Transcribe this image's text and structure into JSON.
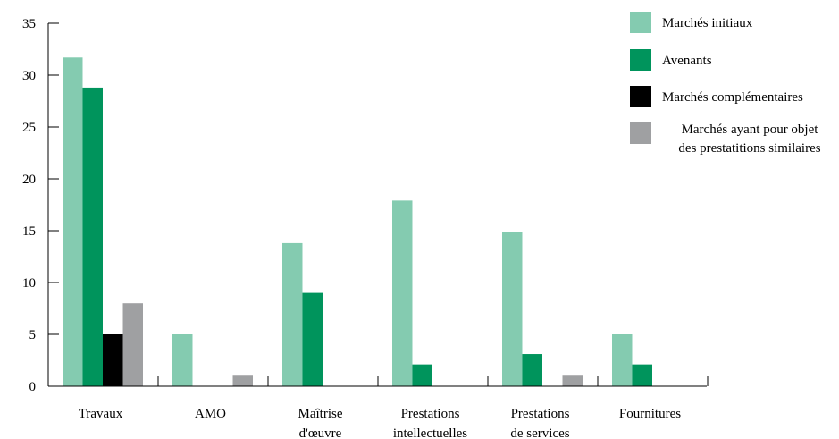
{
  "chart_data": {
    "type": "bar",
    "categories": [
      [
        "Travaux"
      ],
      [
        "AMO"
      ],
      [
        "Maîtrise",
        "d'œuvre"
      ],
      [
        "Prestations",
        "intellectuelles"
      ],
      [
        "Prestations",
        "de services"
      ],
      [
        "Fournitures"
      ]
    ],
    "series": [
      {
        "name": "Marchés initiaux",
        "color": "#84cbb0",
        "values": [
          31.7,
          5,
          13.8,
          17.9,
          14.9,
          5
        ]
      },
      {
        "name": "Avenants",
        "color": "#00945c",
        "values": [
          28.8,
          0,
          9,
          2.1,
          3.1,
          2.1
        ]
      },
      {
        "name": "Marchés complémentaires",
        "color": "#000000",
        "values": [
          5,
          0,
          0,
          0,
          0,
          0
        ]
      },
      {
        "name": [
          "Marchés ayant pour objet",
          "des prestatitions similaires"
        ],
        "color": "#9fa0a2",
        "values": [
          8,
          1.1,
          0,
          0,
          1.1,
          0
        ]
      }
    ],
    "yticks": [
      0,
      5,
      10,
      15,
      20,
      25,
      30,
      35
    ],
    "ylim": [
      0,
      35
    ],
    "grid": false,
    "legend_position": "top-right"
  }
}
